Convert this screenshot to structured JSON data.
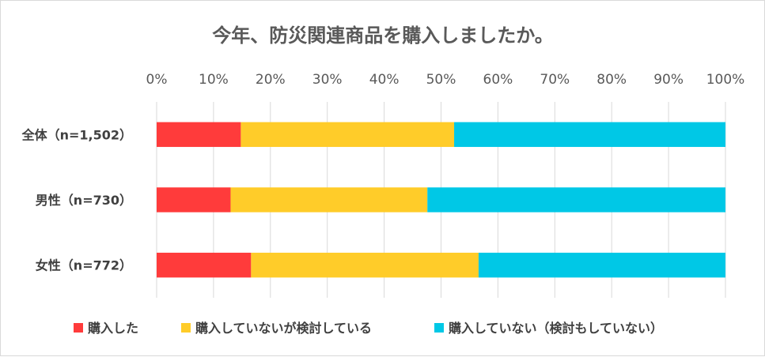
{
  "chart_data": {
    "type": "bar",
    "orientation": "horizontal",
    "stacked": "100%",
    "title": "今年、防災関連商品を購入しましたか。",
    "categories": [
      "全体（n=1,502）",
      "男性（n=730）",
      "女性（n=772）"
    ],
    "x_ticks": [
      "0%",
      "10%",
      "20%",
      "30%",
      "40%",
      "50%",
      "60%",
      "70%",
      "80%",
      "90%",
      "100%"
    ],
    "xlim": [
      0,
      100
    ],
    "grid": true,
    "legend_position": "bottom",
    "series": [
      {
        "name": "購入した",
        "color": "#ff3b3b",
        "values": [
          14.8,
          13.0,
          16.6
        ]
      },
      {
        "name": "購入していないが検討している",
        "color": "#ffcc29",
        "values": [
          37.5,
          34.6,
          40.0
        ]
      },
      {
        "name": "購入していない（検討もしていない）",
        "color": "#00c8e6",
        "values": [
          47.7,
          52.4,
          43.4
        ]
      }
    ]
  }
}
